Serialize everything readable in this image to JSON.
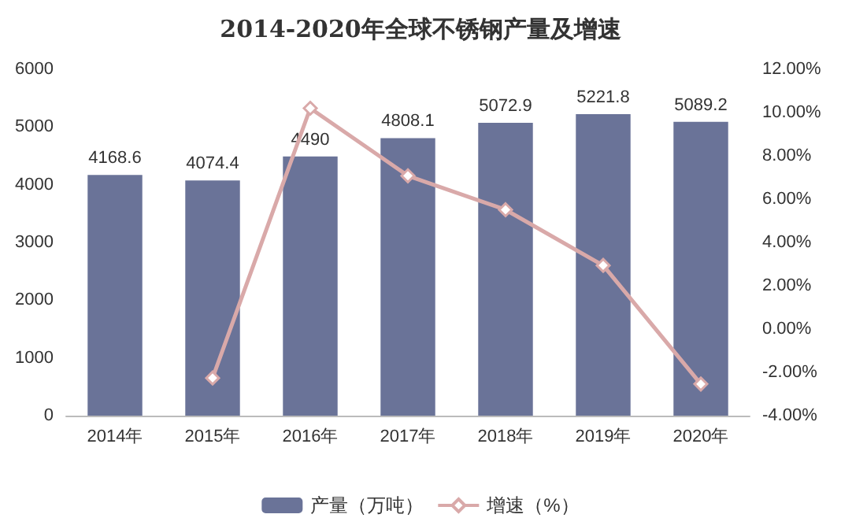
{
  "chart_data": {
    "type": "bar",
    "title": "2014-2020年全球不锈钢产量及增速",
    "categories": [
      "2014年",
      "2015年",
      "2016年",
      "2017年",
      "2018年",
      "2019年",
      "2020年"
    ],
    "series": [
      {
        "name": "产量（万吨）",
        "color": "#6a7398",
        "values": [
          4168.6,
          4074.4,
          4490,
          4808.1,
          5072.9,
          5221.8,
          5089.2
        ],
        "value_labels": [
          "4168.6",
          "4074.4",
          "4490",
          "4808.1",
          "5072.9",
          "5221.8",
          "5089.2"
        ]
      },
      {
        "name": "增速（%）",
        "type": "line",
        "axis": "y2",
        "color": "#d9a9a9",
        "marker": "diamond",
        "values": [
          null,
          -2.26,
          10.2,
          7.08,
          5.51,
          2.94,
          -2.54
        ]
      }
    ],
    "ylim": [
      0,
      6000
    ],
    "yticks": [
      0,
      1000,
      2000,
      3000,
      4000,
      5000,
      6000
    ],
    "y2lim": [
      -4,
      12
    ],
    "y2ticks": [
      {
        "value": -4,
        "label": "-4.00%"
      },
      {
        "value": -2,
        "label": "-2.00%"
      },
      {
        "value": 0,
        "label": "0.00%"
      },
      {
        "value": 2,
        "label": "2.00%"
      },
      {
        "value": 4,
        "label": "4.00%"
      },
      {
        "value": 6,
        "label": "6.00%"
      },
      {
        "value": 8,
        "label": "8.00%"
      },
      {
        "value": 10,
        "label": "10.00%"
      },
      {
        "value": 12,
        "label": "12.00%"
      }
    ],
    "grid": false,
    "legend": "bottom"
  }
}
